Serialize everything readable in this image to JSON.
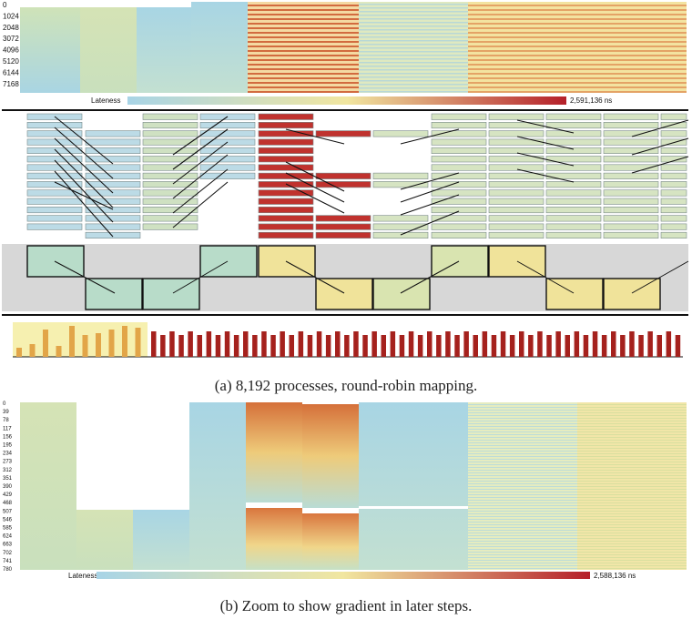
{
  "panel_a": {
    "caption": "(a) 8,192 processes, round-robin mapping.",
    "y_ticks": [
      "0",
      "1024",
      "2048",
      "3072",
      "4096",
      "5120",
      "6144",
      "7168"
    ],
    "legend": {
      "label": "Lateness",
      "max": "2,591,136 ns"
    },
    "colors": {
      "low": "#a8d4e6",
      "mid": "#f1e6a0",
      "high": "#b5202a"
    }
  },
  "panel_b": {
    "caption": "(b) Zoom to show gradient in later steps.",
    "y_ticks": [
      "0",
      "39",
      "78",
      "117",
      "156",
      "195",
      "234",
      "273",
      "312",
      "351",
      "390",
      "429",
      "468",
      "507",
      "546",
      "585",
      "624",
      "663",
      "702",
      "741",
      "780"
    ],
    "legend": {
      "label": "Lateness",
      "max": "2,588,136 ns"
    }
  }
}
